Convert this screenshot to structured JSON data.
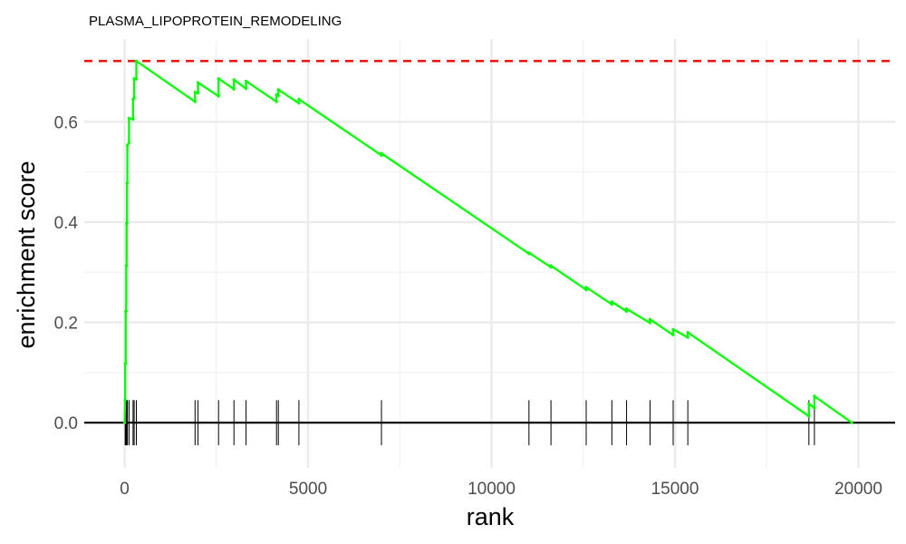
{
  "chart_data": {
    "type": "line",
    "title": "PLASMA_LIPOPROTEIN_REMODELING",
    "xlabel": "rank",
    "ylabel": "enrichment score",
    "xlim": [
      -1100,
      21000
    ],
    "ylim": [
      -0.09,
      0.765
    ],
    "x_ticks": [
      0,
      5000,
      10000,
      15000,
      20000
    ],
    "x_tick_labels": [
      "0",
      "5000",
      "10000",
      "15000",
      "20000"
    ],
    "y_ticks": [
      0.0,
      0.2,
      0.4,
      0.6
    ],
    "y_tick_labels": [
      "0.0",
      "0.2",
      "0.4",
      "0.6"
    ],
    "grid": true,
    "series": [
      {
        "color": "#00ff00",
        "points": [
          [
            0,
            0.0
          ],
          [
            15,
            0.045
          ],
          [
            15,
            0.118
          ],
          [
            30,
            0.118
          ],
          [
            30,
            0.222
          ],
          [
            45,
            0.222
          ],
          [
            45,
            0.313
          ],
          [
            55,
            0.313
          ],
          [
            55,
            0.398
          ],
          [
            65,
            0.398
          ],
          [
            65,
            0.478
          ],
          [
            75,
            0.478
          ],
          [
            75,
            0.553
          ],
          [
            120,
            0.558
          ],
          [
            120,
            0.607
          ],
          [
            230,
            0.605
          ],
          [
            230,
            0.645
          ],
          [
            260,
            0.647
          ],
          [
            260,
            0.686
          ],
          [
            320,
            0.685
          ],
          [
            320,
            0.721
          ],
          [
            1920,
            0.64
          ],
          [
            1920,
            0.659
          ],
          [
            2000,
            0.657
          ],
          [
            2000,
            0.678
          ],
          [
            2560,
            0.651
          ],
          [
            2560,
            0.686
          ],
          [
            2980,
            0.665
          ],
          [
            2980,
            0.684
          ],
          [
            3310,
            0.666
          ],
          [
            3310,
            0.681
          ],
          [
            4140,
            0.64
          ],
          [
            4140,
            0.654
          ],
          [
            4190,
            0.652
          ],
          [
            4190,
            0.664
          ],
          [
            4750,
            0.637
          ],
          [
            4750,
            0.645
          ],
          [
            7000,
            0.533
          ],
          [
            7000,
            0.537
          ],
          [
            11020,
            0.337
          ],
          [
            11020,
            0.339
          ],
          [
            11620,
            0.31
          ],
          [
            11620,
            0.313
          ],
          [
            12580,
            0.265
          ],
          [
            12580,
            0.27
          ],
          [
            13280,
            0.236
          ],
          [
            13280,
            0.241
          ],
          [
            13680,
            0.222
          ],
          [
            13680,
            0.227
          ],
          [
            14320,
            0.199
          ],
          [
            14320,
            0.206
          ],
          [
            14950,
            0.175
          ],
          [
            14950,
            0.186
          ],
          [
            15350,
            0.17
          ],
          [
            15350,
            0.18
          ],
          [
            18650,
            0.013
          ],
          [
            18650,
            0.038
          ],
          [
            18800,
            0.029
          ],
          [
            18800,
            0.053
          ],
          [
            19820,
            0.0
          ]
        ]
      }
    ],
    "max_es": 0.721,
    "max_es_line_color": "#ff0000",
    "hit_ranks": [
      15,
      30,
      45,
      55,
      65,
      75,
      120,
      230,
      260,
      320,
      1920,
      2000,
      2560,
      2980,
      3310,
      4140,
      4190,
      4750,
      7000,
      11020,
      11620,
      12580,
      13280,
      13680,
      14320,
      14950,
      15350,
      18650,
      18800
    ]
  }
}
